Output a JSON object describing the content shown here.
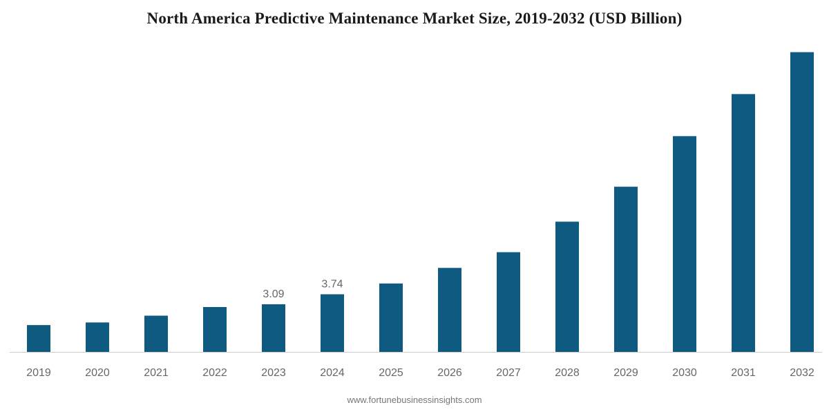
{
  "chart_data": {
    "type": "bar",
    "title": "North America Predictive Maintenance Market Size, 2019-2032 (USD Billion)",
    "xlabel": "",
    "ylabel": "",
    "categories": [
      "2019",
      "2020",
      "2021",
      "2022",
      "2023",
      "2024",
      "2025",
      "2026",
      "2027",
      "2028",
      "2029",
      "2030",
      "2031",
      "2032"
    ],
    "values": [
      1.74,
      1.91,
      2.35,
      2.91,
      3.09,
      3.74,
      4.44,
      5.45,
      6.47,
      8.45,
      10.72,
      14.0,
      16.73,
      19.45
    ],
    "data_labels": [
      {
        "category": "2023",
        "text": "3.09"
      },
      {
        "category": "2024",
        "text": "3.74"
      }
    ],
    "ylim": [
      0,
      19.7
    ],
    "grid": false,
    "bar_color": "#0e5a80",
    "axis_color": "#cccccc",
    "source": "www.fortunebusinessinsights.com"
  }
}
